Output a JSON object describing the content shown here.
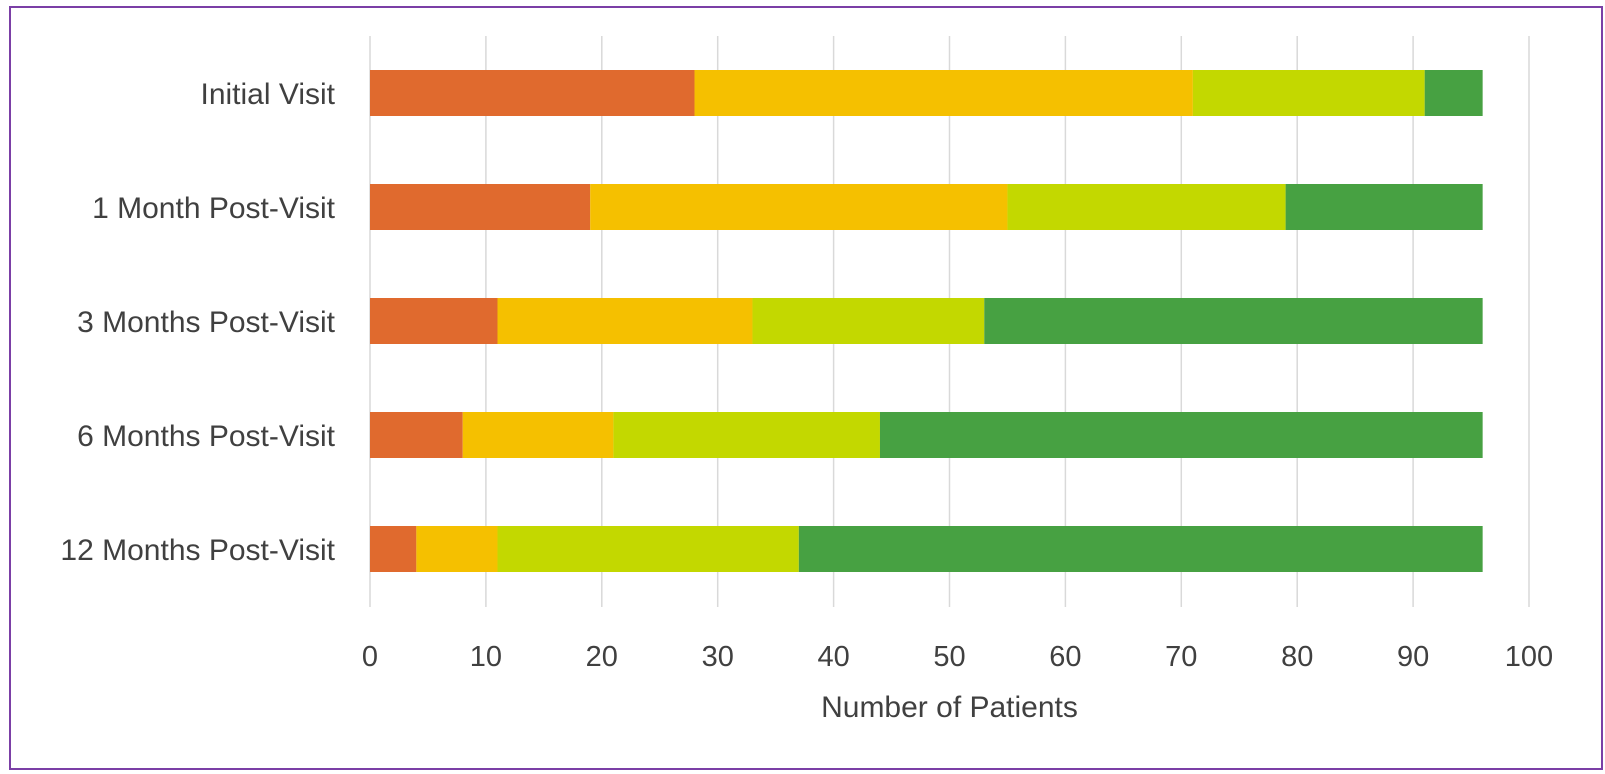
{
  "chart_data": {
    "type": "bar",
    "orientation": "horizontal",
    "stacked": true,
    "title": "",
    "xlabel": "Number of Patients",
    "ylabel": "",
    "xlim": [
      0,
      100
    ],
    "xticks": [
      0,
      10,
      20,
      30,
      40,
      50,
      60,
      70,
      80,
      90,
      100
    ],
    "grid": true,
    "legend": "none",
    "categories": [
      "Initial Visit",
      "1 Month Post-Visit",
      "3 Months Post-Visit",
      "6 Months Post-Visit",
      "12 Months Post-Visit"
    ],
    "series": [
      {
        "color": "#e06a2e",
        "values": [
          28,
          19,
          11,
          8,
          4
        ]
      },
      {
        "color": "#f5c000",
        "values": [
          43,
          36,
          22,
          13,
          7
        ]
      },
      {
        "color": "#c3d800",
        "values": [
          20,
          24,
          20,
          23,
          26
        ]
      },
      {
        "color": "#47a142",
        "values": [
          5,
          17,
          43,
          52,
          59
        ]
      }
    ]
  }
}
